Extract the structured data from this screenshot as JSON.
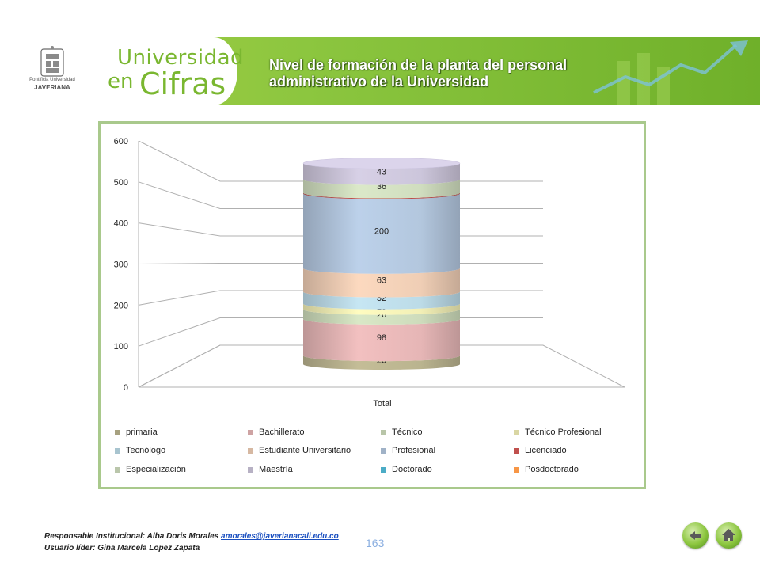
{
  "header": {
    "brand_line1": "Universidad",
    "brand_line2a": "en",
    "brand_line2b": "Cifras",
    "logo_text_top": "Pontificia Universidad",
    "logo_text_bottom": "JAVERIANA",
    "title": "Nivel de formación de la planta del personal administrativo de la Universidad"
  },
  "chart_data": {
    "type": "bar",
    "subtype": "3d-stacked-cylinder",
    "categories": [
      "Total"
    ],
    "y_ticks": [
      "0",
      "100",
      "200",
      "300",
      "400",
      "500",
      "600"
    ],
    "ylim": [
      0,
      600
    ],
    "xlabel": "",
    "ylabel": "",
    "legend_position": "bottom",
    "series": [
      {
        "name": "primaria",
        "values": [
          23
        ],
        "label": "23",
        "color": "#c4bd97"
      },
      {
        "name": "Bachillerato",
        "values": [
          98
        ],
        "label": "98",
        "color": "#f2c0c0"
      },
      {
        "name": "Técnico",
        "values": [
          26
        ],
        "label": "26",
        "color": "#d9e8c6"
      },
      {
        "name": "Técnico Profesional",
        "values": [
          15
        ],
        "label": "15",
        "color": "#fffcc0"
      },
      {
        "name": "Tecnólogo",
        "values": [
          32
        ],
        "label": "32",
        "color": "#c6e6f3"
      },
      {
        "name": "Estudiante Universitario",
        "values": [
          63
        ],
        "label": "63",
        "color": "#fcd9bf"
      },
      {
        "name": "Profesional",
        "values": [
          200
        ],
        "label": "200",
        "color": "#bcd1ea"
      },
      {
        "name": "Licenciado",
        "values": [
          2
        ],
        "label": "",
        "color": "#c0504d"
      },
      {
        "name": "Especialización",
        "values": [
          36
        ],
        "label": "36",
        "color": "#dbe9c9"
      },
      {
        "name": "Maestría",
        "values": [
          43
        ],
        "label": "43",
        "color": "#d7d0e6"
      },
      {
        "name": "Doctorado",
        "values": [
          0
        ],
        "label": "",
        "color": "#4bacc6"
      },
      {
        "name": "Posdoctorado",
        "values": [
          0
        ],
        "label": "",
        "color": "#f79646"
      }
    ]
  },
  "footer": {
    "responsible_label": "Responsable Institucional: Alba Doris Morales",
    "responsible_email": "amorales@javerianacali.edu.co",
    "leader_label": "Usuario líder: Gina Marcela Lopez Zapata",
    "page_number": "163"
  },
  "nav": {
    "back_icon": "back-arrow-icon",
    "home_icon": "home-icon"
  }
}
